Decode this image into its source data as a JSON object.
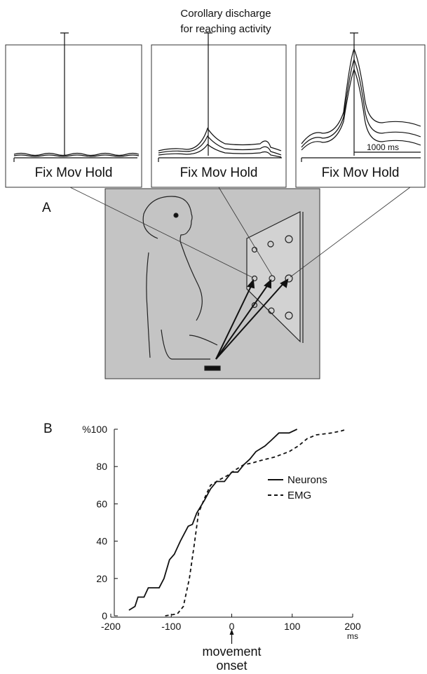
{
  "figure": {
    "title_lines": [
      "Corollary discharge",
      "for reaching activity"
    ],
    "panels": [
      {
        "axis_label": "Fix Mov Hold"
      },
      {
        "axis_label": "Fix Mov Hold"
      },
      {
        "axis_label": "Fix Mov Hold",
        "scale_label": "1000 ms"
      }
    ],
    "label_a": "A",
    "label_b": "B"
  },
  "chart_data": {
    "type": "line",
    "xlim": [
      -200,
      200
    ],
    "xticks": [
      -200,
      -100,
      0,
      100,
      200
    ],
    "ylim": [
      0,
      100
    ],
    "yticks": [
      0,
      20,
      40,
      60,
      80,
      {
        "value": 100,
        "label": "%100"
      }
    ],
    "x_unit": "ms",
    "annotation": [
      "movement",
      "onset"
    ],
    "legend": "right",
    "series": [
      {
        "name": "Neurons",
        "color": "#111",
        "style": "solid",
        "x": [
          -170,
          -160,
          -155,
          -145,
          -138,
          -120,
          -112,
          -103,
          -95,
          -85,
          -72,
          -65,
          -58,
          -45,
          -35,
          -25,
          -12,
          0,
          10,
          20,
          30,
          40,
          55,
          65,
          78,
          95,
          108
        ],
        "values": [
          3,
          5,
          10,
          10,
          15,
          15,
          20,
          30,
          33,
          40,
          48,
          49,
          55,
          62,
          68,
          72,
          72,
          77,
          77,
          81,
          84,
          88,
          91,
          94,
          98,
          98,
          100
        ]
      },
      {
        "name": "EMG",
        "color": "#111",
        "style": "dashed",
        "x": [
          -110,
          -90,
          -80,
          -70,
          -62,
          -55,
          -45,
          -35,
          -20,
          -8,
          5,
          20,
          35,
          45,
          70,
          95,
          110,
          125,
          140,
          165,
          180,
          190
        ],
        "values": [
          0,
          1,
          5,
          20,
          38,
          55,
          63,
          70,
          73,
          75,
          78,
          81,
          82,
          83,
          85,
          88,
          91,
          95,
          97,
          98,
          99,
          100
        ]
      }
    ]
  }
}
